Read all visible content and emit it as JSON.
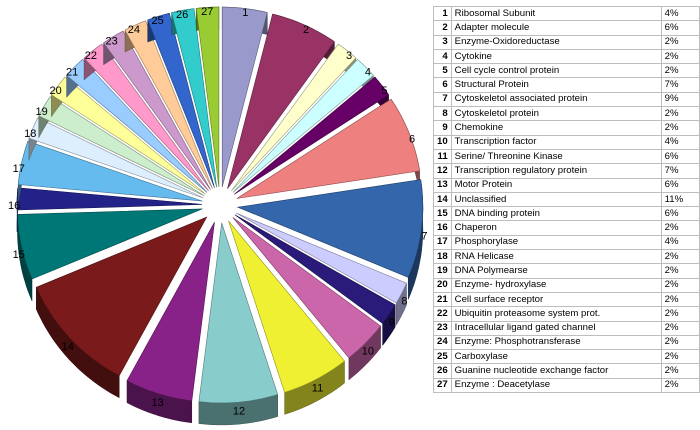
{
  "chart_data": {
    "type": "pie",
    "title": "",
    "categories": [
      {
        "id": "1",
        "label": "Ribosomal Subunit",
        "value": 4,
        "pct": "4%",
        "color": "#9999cc"
      },
      {
        "id": "2",
        "label": "Adapter molecule",
        "value": 6,
        "pct": "6%",
        "color": "#993366"
      },
      {
        "id": "3",
        "label": "Enzyme-Oxidoreductase",
        "value": 2,
        "pct": "2%",
        "color": "#ffffcc"
      },
      {
        "id": "4",
        "label": "Cytokine",
        "value": 2,
        "pct": "2%",
        "color": "#ccffff"
      },
      {
        "id": "5",
        "label": "Cell cycle control protein",
        "value": 2,
        "pct": "2%",
        "color": "#660066"
      },
      {
        "id": "6",
        "label": "Structural Protein",
        "value": 7,
        "pct": "7%",
        "color": "#ee8080"
      },
      {
        "id": "7",
        "label": "Cytoskeletol associated protein",
        "value": 9,
        "pct": "9%",
        "color": "#3366aa"
      },
      {
        "id": "8",
        "label": "Cytoskeletol  protein",
        "value": 2,
        "pct": "2%",
        "color": "#ccccff"
      },
      {
        "id": "9",
        "label": "Chemokine",
        "value": 2,
        "pct": "2%",
        "color": "#2a1a7a"
      },
      {
        "id": "10",
        "label": "Transcription factor",
        "value": 4,
        "pct": "4%",
        "color": "#cc66aa"
      },
      {
        "id": "11",
        "label": "Serine/ Threonine Kinase",
        "value": 6,
        "pct": "6%",
        "color": "#f0f033"
      },
      {
        "id": "12",
        "label": "Transcription regulatory protein",
        "value": 7,
        "pct": "7%",
        "color": "#88cccc"
      },
      {
        "id": "13",
        "label": "Motor Protein",
        "value": 6,
        "pct": "6%",
        "color": "#882288"
      },
      {
        "id": "14",
        "label": "Unclassified",
        "value": 11,
        "pct": "11%",
        "color": "#7a1a1a"
      },
      {
        "id": "15",
        "label": "DNA binding protein",
        "value": 6,
        "pct": "6%",
        "color": "#007777"
      },
      {
        "id": "16",
        "label": "Chaperon",
        "value": 2,
        "pct": "2%",
        "color": "#222288"
      },
      {
        "id": "17",
        "label": "Phosphorylase",
        "value": 4,
        "pct": "4%",
        "color": "#66bbee"
      },
      {
        "id": "18",
        "label": "RNA Helicase",
        "value": 2,
        "pct": "2%",
        "color": "#ddeeff"
      },
      {
        "id": "19",
        "label": "DNA Polymearse",
        "value": 2,
        "pct": "2%",
        "color": "#cceecc"
      },
      {
        "id": "20",
        "label": "Enzyme- hydroxylase",
        "value": 2,
        "pct": "2%",
        "color": "#ffff99"
      },
      {
        "id": "21",
        "label": "Cell surface receptor",
        "value": 2,
        "pct": "2%",
        "color": "#99ccff"
      },
      {
        "id": "22",
        "label": "Ubiquitin proteasome system prot.",
        "value": 2,
        "pct": "2%",
        "color": "#ff99cc"
      },
      {
        "id": "23",
        "label": "Intracellular ligand gated channel",
        "value": 2,
        "pct": "2%",
        "color": "#cc99cc"
      },
      {
        "id": "24",
        "label": "Enzyme: Phosphotransferase",
        "value": 2,
        "pct": "2%",
        "color": "#ffcc99"
      },
      {
        "id": "25",
        "label": "Carboxylase",
        "value": 2,
        "pct": "2%",
        "color": "#3366cc"
      },
      {
        "id": "26",
        "label": "Guanine nucleotide exchange factor",
        "value": 2,
        "pct": "2%",
        "color": "#33cccc"
      },
      {
        "id": "27",
        "label": "Enzyme : Deacetylase",
        "value": 2,
        "pct": "2%",
        "color": "#99cc33"
      }
    ],
    "legend_placement": "right",
    "exploded": true,
    "three_d": true
  }
}
